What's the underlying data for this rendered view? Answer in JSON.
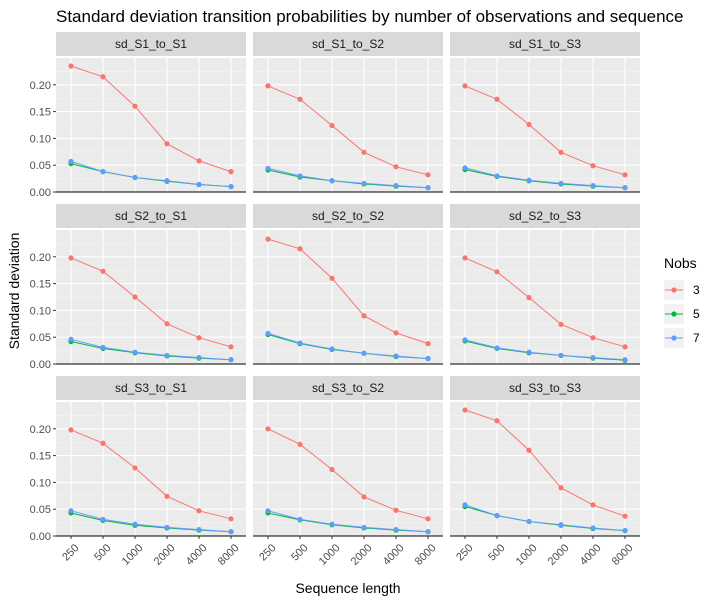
{
  "chart_data": {
    "type": "line",
    "title": "Standard deviation transition probabilities by number of observations and sequence",
    "xlabel": "Sequence length",
    "ylabel": "Standard deviation",
    "x_categories": [
      "250",
      "500",
      "1000",
      "2000",
      "4000",
      "8000"
    ],
    "y_ticks": [
      "0.00",
      "0.05",
      "0.10",
      "0.15",
      "0.20"
    ],
    "ylim": [
      0,
      0.25
    ],
    "grid": true,
    "legend": {
      "title": "Nobs",
      "placement": "right",
      "entries": [
        {
          "label": "3",
          "color": "#F8766D"
        },
        {
          "label": "5",
          "color": "#00BA38"
        },
        {
          "label": "7",
          "color": "#619CFF"
        }
      ]
    },
    "facets": [
      {
        "label": "sd_S1_to_S1",
        "series": [
          {
            "name": "3",
            "values": [
              0.235,
              0.215,
              0.16,
              0.09,
              0.058,
              0.038
            ]
          },
          {
            "name": "5",
            "values": [
              0.053,
              0.038,
              0.027,
              0.02,
              0.014,
              0.01
            ]
          },
          {
            "name": "7",
            "values": [
              0.057,
              0.038,
              0.027,
              0.021,
              0.014,
              0.01
            ]
          }
        ]
      },
      {
        "label": "sd_S1_to_S2",
        "series": [
          {
            "name": "3",
            "values": [
              0.198,
              0.173,
              0.124,
              0.074,
              0.047,
              0.032
            ]
          },
          {
            "name": "5",
            "values": [
              0.041,
              0.028,
              0.021,
              0.015,
              0.011,
              0.008
            ]
          },
          {
            "name": "7",
            "values": [
              0.044,
              0.03,
              0.021,
              0.016,
              0.012,
              0.008
            ]
          }
        ]
      },
      {
        "label": "sd_S1_to_S3",
        "series": [
          {
            "name": "3",
            "values": [
              0.198,
              0.173,
              0.126,
              0.074,
              0.049,
              0.032
            ]
          },
          {
            "name": "5",
            "values": [
              0.042,
              0.029,
              0.021,
              0.015,
              0.011,
              0.008
            ]
          },
          {
            "name": "7",
            "values": [
              0.045,
              0.03,
              0.022,
              0.016,
              0.012,
              0.008
            ]
          }
        ]
      },
      {
        "label": "sd_S2_to_S1",
        "series": [
          {
            "name": "3",
            "values": [
              0.198,
              0.173,
              0.125,
              0.075,
              0.049,
              0.032
            ]
          },
          {
            "name": "5",
            "values": [
              0.042,
              0.029,
              0.021,
              0.015,
              0.011,
              0.008
            ]
          },
          {
            "name": "7",
            "values": [
              0.046,
              0.031,
              0.022,
              0.016,
              0.012,
              0.008
            ]
          }
        ]
      },
      {
        "label": "sd_S2_to_S2",
        "series": [
          {
            "name": "3",
            "values": [
              0.233,
              0.215,
              0.16,
              0.09,
              0.058,
              0.038
            ]
          },
          {
            "name": "5",
            "values": [
              0.055,
              0.038,
              0.027,
              0.02,
              0.014,
              0.01
            ]
          },
          {
            "name": "7",
            "values": [
              0.057,
              0.039,
              0.028,
              0.02,
              0.015,
              0.01
            ]
          }
        ]
      },
      {
        "label": "sd_S2_to_S3",
        "series": [
          {
            "name": "3",
            "values": [
              0.198,
              0.172,
              0.124,
              0.074,
              0.049,
              0.032
            ]
          },
          {
            "name": "5",
            "values": [
              0.043,
              0.029,
              0.021,
              0.016,
              0.011,
              0.007
            ]
          },
          {
            "name": "7",
            "values": [
              0.045,
              0.03,
              0.022,
              0.016,
              0.012,
              0.008
            ]
          }
        ]
      },
      {
        "label": "sd_S3_to_S1",
        "series": [
          {
            "name": "3",
            "values": [
              0.198,
              0.173,
              0.127,
              0.074,
              0.047,
              0.032
            ]
          },
          {
            "name": "5",
            "values": [
              0.043,
              0.029,
              0.02,
              0.015,
              0.011,
              0.008
            ]
          },
          {
            "name": "7",
            "values": [
              0.047,
              0.031,
              0.022,
              0.016,
              0.012,
              0.008
            ]
          }
        ]
      },
      {
        "label": "sd_S3_to_S2",
        "series": [
          {
            "name": "3",
            "values": [
              0.2,
              0.171,
              0.124,
              0.073,
              0.048,
              0.032
            ]
          },
          {
            "name": "5",
            "values": [
              0.043,
              0.03,
              0.021,
              0.015,
              0.011,
              0.008
            ]
          },
          {
            "name": "7",
            "values": [
              0.047,
              0.031,
              0.022,
              0.016,
              0.012,
              0.008
            ]
          }
        ]
      },
      {
        "label": "sd_S3_to_S3",
        "series": [
          {
            "name": "3",
            "values": [
              0.235,
              0.215,
              0.16,
              0.09,
              0.058,
              0.037
            ]
          },
          {
            "name": "5",
            "values": [
              0.055,
              0.038,
              0.027,
              0.02,
              0.014,
              0.01
            ]
          },
          {
            "name": "7",
            "values": [
              0.058,
              0.038,
              0.027,
              0.021,
              0.015,
              0.01
            ]
          }
        ]
      }
    ]
  }
}
